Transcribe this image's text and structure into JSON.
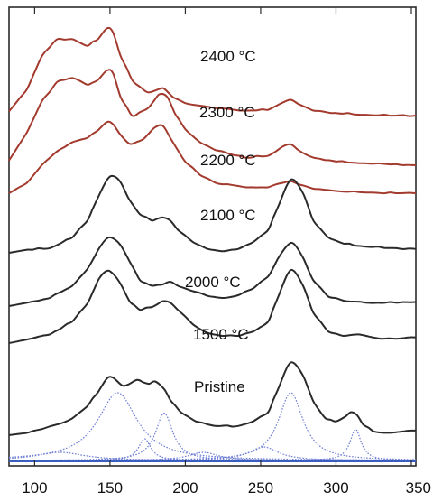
{
  "chart_data": {
    "type": "line",
    "title": "",
    "xlabel": "",
    "ylabel": "",
    "x_ticks": [
      100,
      150,
      200,
      250,
      300,
      350
    ],
    "xlim": [
      83,
      353
    ],
    "grid": false,
    "legend": "none",
    "colors": {
      "high_temperature": "#a33a2e",
      "low_temperature": "#2a2a2a",
      "fit_components": "#6f7fd6",
      "baseline": "#3b5fc0",
      "frame": "#2b2b2b"
    },
    "series": [
      {
        "name": "2400 °C",
        "color": "#a33a2e",
        "x": [
          83,
          95,
          105,
          115,
          125,
          135,
          142,
          148,
          152,
          157,
          165,
          175,
          185,
          192,
          200,
          210,
          220,
          240,
          255,
          265,
          270,
          275,
          285,
          300,
          320,
          340,
          353
        ],
        "y": [
          0.05,
          0.32,
          0.72,
          0.92,
          0.92,
          0.84,
          0.92,
          1.05,
          1.0,
          0.72,
          0.42,
          0.28,
          0.33,
          0.22,
          0.15,
          0.12,
          0.09,
          0.06,
          0.07,
          0.16,
          0.19,
          0.14,
          0.06,
          0.03,
          0.01,
          0.0,
          0.0
        ]
      },
      {
        "name": "2300 °C",
        "color": "#a33a2e",
        "x": [
          83,
          95,
          105,
          115,
          125,
          135,
          142,
          148,
          152,
          157,
          165,
          175,
          183,
          188,
          193,
          200,
          210,
          220,
          240,
          255,
          265,
          270,
          275,
          285,
          300,
          320,
          340,
          353
        ],
        "y": [
          0.05,
          0.35,
          0.68,
          0.88,
          0.92,
          0.85,
          0.9,
          1.0,
          0.97,
          0.72,
          0.52,
          0.6,
          0.75,
          0.72,
          0.55,
          0.38,
          0.24,
          0.16,
          0.08,
          0.1,
          0.2,
          0.22,
          0.16,
          0.08,
          0.04,
          0.02,
          0.01,
          0.0
        ]
      },
      {
        "name": "2200 °C",
        "color": "#a33a2e",
        "x": [
          83,
          95,
          105,
          115,
          125,
          135,
          142,
          148,
          152,
          157,
          163,
          172,
          180,
          185,
          190,
          200,
          210,
          220,
          240,
          255,
          265,
          270,
          275,
          285,
          300,
          320,
          340,
          353
        ],
        "y": [
          0.0,
          0.14,
          0.38,
          0.56,
          0.68,
          0.74,
          0.84,
          0.95,
          0.92,
          0.78,
          0.66,
          0.72,
          0.88,
          0.9,
          0.74,
          0.42,
          0.24,
          0.14,
          0.08,
          0.08,
          0.14,
          0.16,
          0.12,
          0.06,
          0.03,
          0.01,
          0.0,
          0.0
        ]
      },
      {
        "name": "2100 °C",
        "color": "#2a2a2a",
        "x": [
          83,
          95,
          110,
          125,
          135,
          142,
          148,
          152,
          157,
          162,
          170,
          178,
          185,
          190,
          195,
          205,
          215,
          225,
          235,
          245,
          255,
          262,
          268,
          272,
          278,
          285,
          295,
          305,
          320,
          340,
          353
        ],
        "y": [
          0.0,
          0.04,
          0.06,
          0.2,
          0.42,
          0.72,
          0.95,
          1.0,
          0.92,
          0.72,
          0.5,
          0.42,
          0.46,
          0.42,
          0.3,
          0.14,
          0.05,
          0.02,
          0.05,
          0.14,
          0.3,
          0.62,
          0.9,
          0.95,
          0.78,
          0.42,
          0.2,
          0.12,
          0.08,
          0.06,
          0.05
        ]
      },
      {
        "name": "2000 °C",
        "color": "#2a2a2a",
        "x": [
          83,
          95,
          110,
          125,
          135,
          143,
          148,
          152,
          157,
          163,
          170,
          178,
          185,
          190,
          195,
          205,
          215,
          225,
          235,
          245,
          255,
          262,
          268,
          272,
          278,
          285,
          295,
          305,
          320,
          340,
          353
        ],
        "y": [
          0.0,
          0.05,
          0.12,
          0.3,
          0.55,
          0.86,
          1.0,
          1.0,
          0.9,
          0.66,
          0.38,
          0.3,
          0.32,
          0.36,
          0.3,
          0.22,
          0.15,
          0.12,
          0.16,
          0.26,
          0.44,
          0.72,
          0.9,
          0.92,
          0.72,
          0.38,
          0.14,
          0.08,
          0.05,
          0.05,
          0.06
        ]
      },
      {
        "name": "1500 °C",
        "color": "#2a2a2a",
        "x": [
          83,
          95,
          110,
          125,
          135,
          143,
          148,
          152,
          157,
          163,
          170,
          178,
          185,
          190,
          195,
          205,
          215,
          225,
          235,
          245,
          255,
          262,
          268,
          272,
          278,
          285,
          295,
          305,
          315,
          320,
          330,
          340,
          353
        ],
        "y": [
          0.0,
          0.05,
          0.12,
          0.3,
          0.55,
          0.9,
          1.0,
          0.96,
          0.82,
          0.58,
          0.46,
          0.5,
          0.58,
          0.56,
          0.46,
          0.26,
          0.14,
          0.1,
          0.1,
          0.16,
          0.3,
          0.66,
          0.96,
          1.0,
          0.8,
          0.42,
          0.16,
          0.1,
          0.12,
          0.1,
          0.06,
          0.06,
          0.08
        ]
      },
      {
        "name": "Pristine",
        "color": "#2a2a2a",
        "x": [
          83,
          95,
          105,
          115,
          125,
          135,
          142,
          148,
          152,
          158,
          162,
          168,
          172,
          176,
          180,
          186,
          190,
          197,
          207,
          220,
          235,
          245,
          255,
          262,
          268,
          272,
          278,
          285,
          293,
          300,
          306,
          310,
          314,
          318,
          325,
          335,
          345,
          353
        ],
        "y": [
          0.0,
          0.03,
          0.08,
          0.14,
          0.22,
          0.38,
          0.56,
          0.74,
          0.75,
          0.65,
          0.66,
          0.72,
          0.69,
          0.67,
          0.7,
          0.6,
          0.46,
          0.3,
          0.18,
          0.12,
          0.12,
          0.18,
          0.3,
          0.62,
          0.9,
          0.94,
          0.78,
          0.44,
          0.22,
          0.18,
          0.24,
          0.3,
          0.26,
          0.14,
          0.05,
          0.03,
          0.05,
          0.06
        ]
      }
    ],
    "components": [
      {
        "center": 117,
        "width": 20,
        "height": 0.12
      },
      {
        "center": 155,
        "width": 16,
        "height": 1.0
      },
      {
        "center": 173,
        "width": 5,
        "height": 0.32
      },
      {
        "center": 186,
        "width": 7,
        "height": 0.7
      },
      {
        "center": 212,
        "width": 12,
        "height": 0.12
      },
      {
        "center": 252,
        "width": 12,
        "height": 0.2
      },
      {
        "center": 270,
        "width": 10,
        "height": 1.0
      },
      {
        "center": 313,
        "width": 4.5,
        "height": 0.46
      }
    ]
  }
}
